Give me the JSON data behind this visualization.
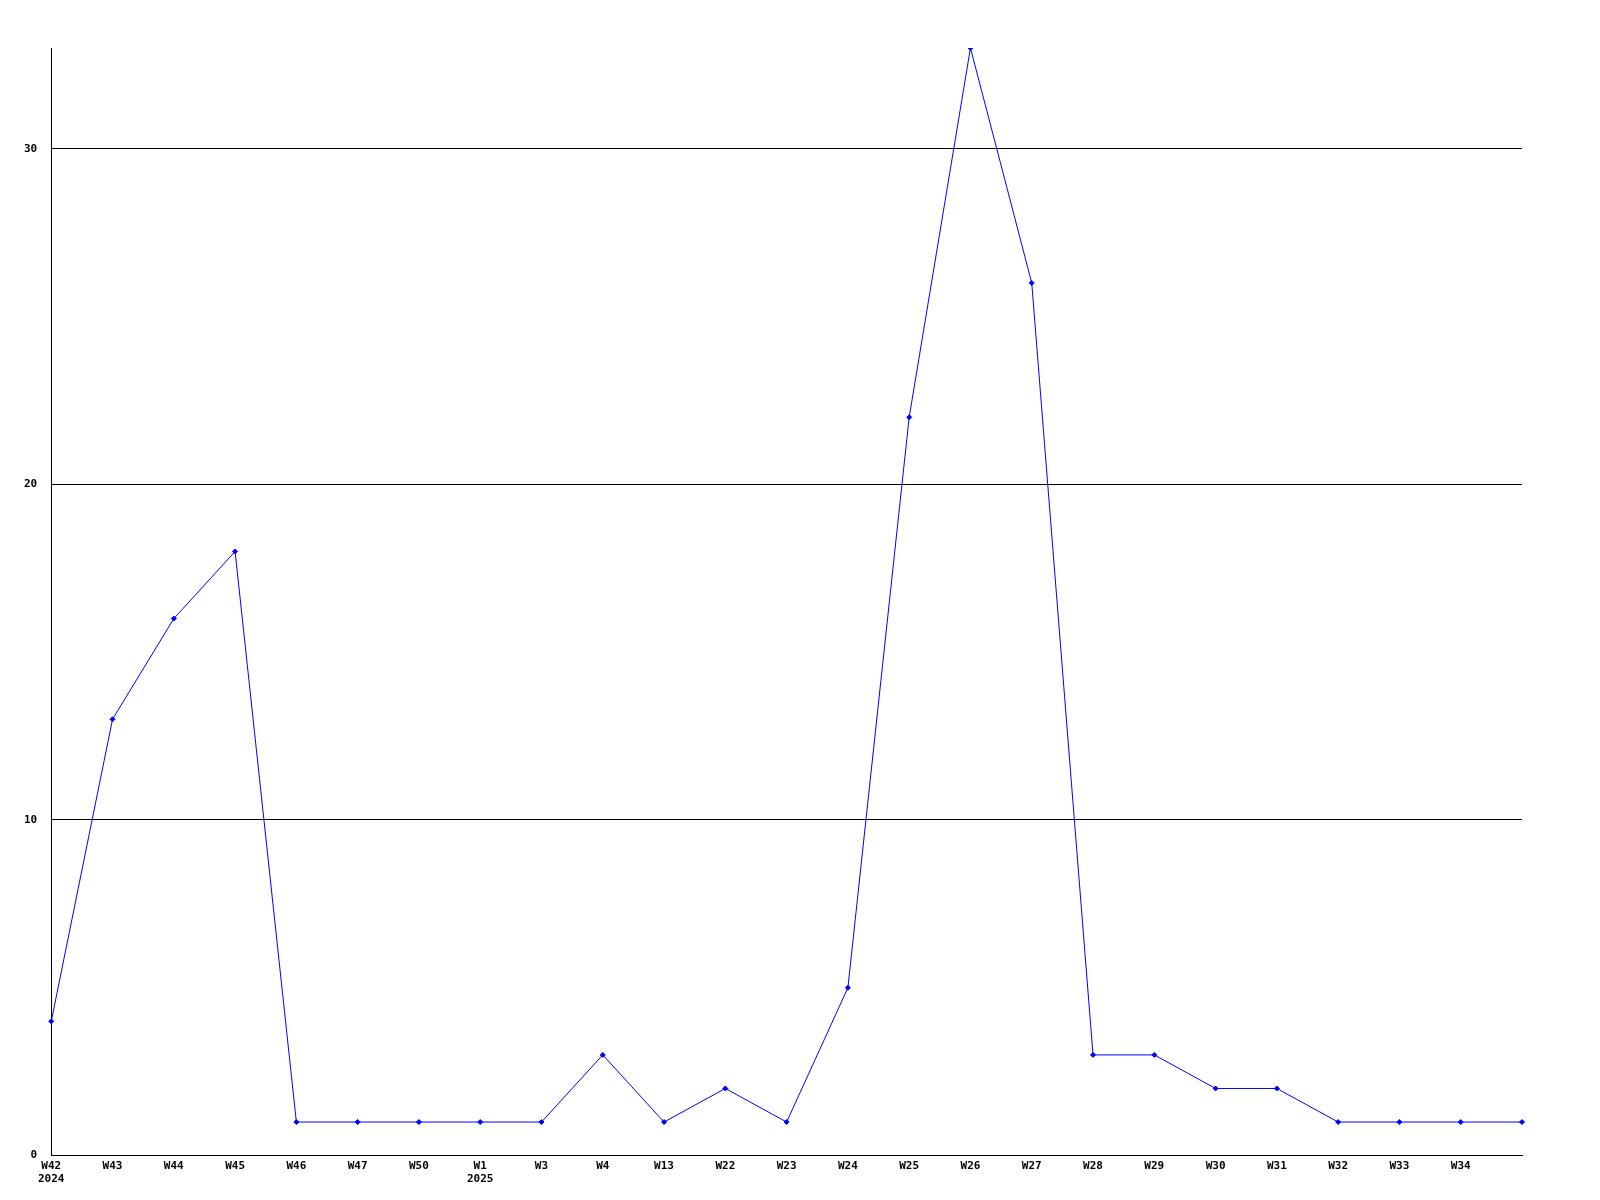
{
  "chart_data": {
    "type": "line",
    "categories": [
      "W42\n2024",
      "W43",
      "W44",
      "W45",
      "W46",
      "W47",
      "W50",
      "W1\n2025",
      "W3",
      "W4",
      "W13",
      "W22",
      "W23",
      "W24",
      "W25",
      "W26",
      "W27",
      "W28",
      "W29",
      "W30",
      "W31",
      "W32",
      "W33",
      "W34",
      null
    ],
    "series": [
      {
        "color": "#0000ff",
        "values": [
          4,
          13,
          16,
          18,
          1,
          1,
          1,
          1,
          1,
          3,
          1,
          2,
          1,
          5,
          22,
          33,
          26,
          3,
          3,
          2,
          2,
          1,
          1,
          1,
          1
        ]
      }
    ],
    "ylim": [
      0,
      33
    ],
    "yticks": [
      0,
      10,
      20,
      30
    ],
    "grid": "y",
    "legend": false,
    "marker": "diamond",
    "line_style": "solid"
  }
}
